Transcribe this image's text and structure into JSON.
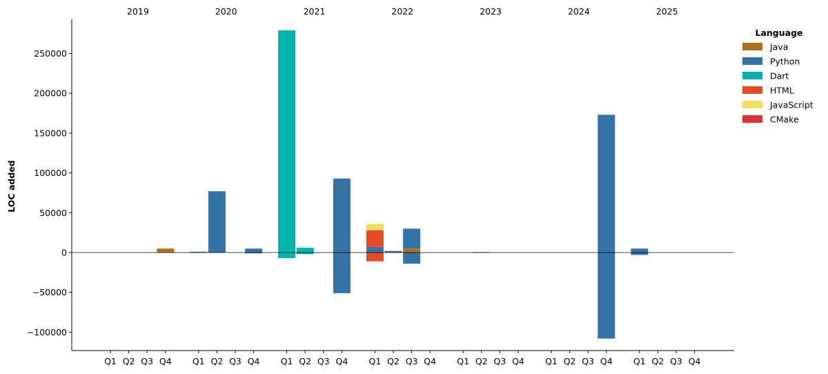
{
  "chart_data": {
    "type": "bar",
    "ylabel": "LOC added",
    "ylim": [
      -122000,
      293000
    ],
    "yticks": [
      -100000,
      -50000,
      0,
      50000,
      100000,
      150000,
      200000,
      250000
    ],
    "ytick_labels": [
      "−100000",
      "−50000",
      "0",
      "50000",
      "100000",
      "150000",
      "200000",
      "250000"
    ],
    "years": [
      "2019",
      "2020",
      "2021",
      "2022",
      "2023",
      "2024",
      "2025"
    ],
    "quarters": [
      "Q1",
      "Q2",
      "Q3",
      "Q4"
    ],
    "grid": false,
    "legend": {
      "title": "Language",
      "position": "top-right outside",
      "items": [
        {
          "name": "Java",
          "color": "#b06f1a"
        },
        {
          "name": "Python",
          "color": "#3572a5"
        },
        {
          "name": "Dart",
          "color": "#00b4ab"
        },
        {
          "name": "HTML",
          "color": "#e34c26"
        },
        {
          "name": "JavaScript",
          "color": "#f1e05a"
        },
        {
          "name": "CMake",
          "color": "#da3434"
        }
      ]
    },
    "bars": [
      {
        "year": "2019",
        "quarter": "Q4",
        "segments": [
          {
            "lang": "Java",
            "from": 0,
            "to": 5000
          }
        ]
      },
      {
        "year": "2020",
        "quarter": "Q1",
        "segments": [
          {
            "lang": "Python",
            "from": 0,
            "to": 1000
          }
        ]
      },
      {
        "year": "2020",
        "quarter": "Q2",
        "segments": [
          {
            "lang": "Python",
            "from": 0,
            "to": 77000
          }
        ]
      },
      {
        "year": "2020",
        "quarter": "Q4",
        "segments": [
          {
            "lang": "Python",
            "from": 0,
            "to": 5000
          },
          {
            "lang": "Python",
            "from": -1000,
            "to": 0
          }
        ]
      },
      {
        "year": "2021",
        "quarter": "Q1",
        "segments": [
          {
            "lang": "Dart",
            "from": 0,
            "to": 279000
          },
          {
            "lang": "Dart",
            "from": -7000,
            "to": 0
          }
        ]
      },
      {
        "year": "2021",
        "quarter": "Q2",
        "segments": [
          {
            "lang": "Dart",
            "from": 0,
            "to": 6000
          },
          {
            "lang": "Dart",
            "from": -2000,
            "to": 0
          }
        ]
      },
      {
        "year": "2021",
        "quarter": "Q4",
        "segments": [
          {
            "lang": "Python",
            "from": 0,
            "to": 93000
          },
          {
            "lang": "Python",
            "from": -51000,
            "to": 0
          }
        ]
      },
      {
        "year": "2022",
        "quarter": "Q1",
        "segments": [
          {
            "lang": "Python",
            "from": 0,
            "to": 7000
          },
          {
            "lang": "HTML",
            "from": 7000,
            "to": 28000
          },
          {
            "lang": "JavaScript",
            "from": 28000,
            "to": 36000
          },
          {
            "lang": "HTML",
            "from": -11000,
            "to": 0
          }
        ]
      },
      {
        "year": "2022",
        "quarter": "Q2",
        "segments": [
          {
            "lang": "Python",
            "from": 0,
            "to": 2000
          }
        ]
      },
      {
        "year": "2022",
        "quarter": "Q3",
        "segments": [
          {
            "lang": "Java",
            "from": 0,
            "to": 5000
          },
          {
            "lang": "Python",
            "from": 5000,
            "to": 30000
          },
          {
            "lang": "Python",
            "from": -14000,
            "to": 0
          }
        ]
      },
      {
        "year": "2023",
        "quarter": "Q2",
        "segments": [
          {
            "lang": "Java",
            "from": 0,
            "to": 600
          }
        ]
      },
      {
        "year": "2024",
        "quarter": "Q4",
        "segments": [
          {
            "lang": "Python",
            "from": 0,
            "to": 173000
          },
          {
            "lang": "Python",
            "from": -108000,
            "to": 0
          }
        ]
      },
      {
        "year": "2025",
        "quarter": "Q1",
        "segments": [
          {
            "lang": "Python",
            "from": 0,
            "to": 5000
          },
          {
            "lang": "Python",
            "from": -3000,
            "to": 0
          }
        ]
      }
    ]
  }
}
